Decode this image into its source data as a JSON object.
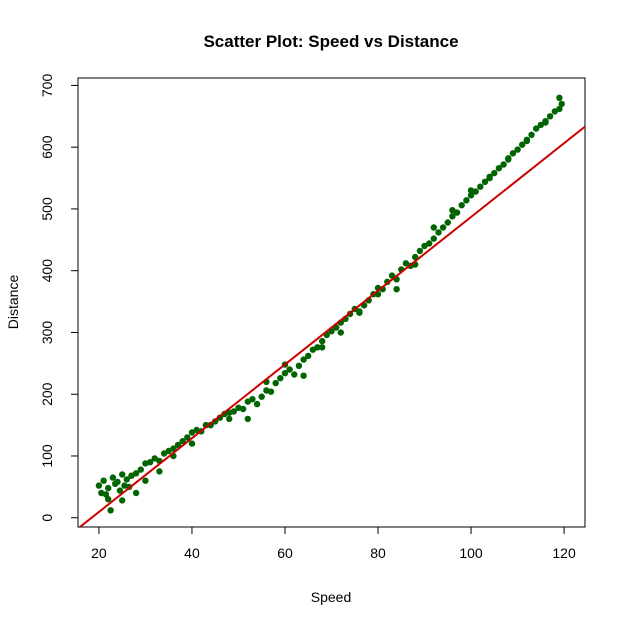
{
  "chart_data": {
    "type": "scatter",
    "title": "Scatter Plot: Speed vs Distance",
    "xlabel": "Speed",
    "ylabel": "Distance",
    "xlim": [
      15.5,
      124.5
    ],
    "ylim": [
      -15,
      712
    ],
    "xticks": [
      "20",
      "40",
      "60",
      "80",
      "100",
      "120"
    ],
    "yticks": [
      "0",
      "100",
      "200",
      "300",
      "400",
      "500",
      "600",
      "700"
    ],
    "grid": false,
    "legend": "none",
    "series": [
      {
        "kind": "points",
        "color": "#006400",
        "x": [
          20,
          20.5,
          21,
          21.5,
          22,
          22.5,
          23,
          23.5,
          24,
          24.5,
          25,
          25.5,
          26,
          26.5,
          27,
          28,
          29,
          30,
          31,
          32,
          33,
          34,
          35,
          36,
          37,
          38,
          39,
          40,
          41,
          42,
          43,
          44,
          45,
          46,
          47,
          48,
          49,
          50,
          51,
          52,
          53,
          54,
          55,
          56,
          57,
          58,
          59,
          60,
          61,
          62,
          63,
          64,
          65,
          66,
          67,
          68,
          69,
          70,
          71,
          72,
          73,
          74,
          75,
          76,
          77,
          78,
          79,
          80,
          81,
          82,
          83,
          84,
          85,
          86,
          87,
          88,
          89,
          90,
          91,
          92,
          93,
          94,
          95,
          96,
          97,
          98,
          99,
          100,
          101,
          102,
          103,
          104,
          105,
          106,
          107,
          108,
          109,
          110,
          111,
          112,
          113,
          114,
          115,
          116,
          117,
          118,
          119,
          119.5,
          22,
          25,
          28,
          30,
          33,
          36,
          40,
          44,
          48,
          52,
          56,
          60,
          64,
          68,
          72,
          76,
          80,
          84,
          88,
          92,
          96,
          100,
          104,
          108,
          112,
          116,
          119
        ],
        "y": [
          52,
          40,
          60,
          38,
          48,
          12,
          65,
          55,
          58,
          44,
          70,
          52,
          62,
          50,
          68,
          72,
          78,
          88,
          90,
          96,
          92,
          104,
          108,
          112,
          118,
          124,
          130,
          138,
          142,
          140,
          150,
          150,
          156,
          162,
          168,
          160,
          172,
          178,
          176,
          188,
          192,
          184,
          196,
          206,
          204,
          218,
          226,
          234,
          240,
          232,
          246,
          256,
          262,
          272,
          276,
          286,
          296,
          302,
          308,
          316,
          322,
          330,
          338,
          334,
          344,
          352,
          362,
          372,
          370,
          382,
          392,
          386,
          402,
          412,
          408,
          422,
          432,
          440,
          444,
          452,
          462,
          470,
          478,
          488,
          494,
          506,
          514,
          522,
          528,
          536,
          544,
          552,
          558,
          566,
          572,
          582,
          590,
          596,
          604,
          612,
          620,
          630,
          636,
          642,
          650,
          658,
          662,
          670,
          30,
          28,
          40,
          60,
          75,
          100,
          120,
          150,
          170,
          160,
          220,
          248,
          230,
          276,
          300,
          332,
          362,
          370,
          410,
          470,
          498,
          530,
          550,
          580,
          610,
          640,
          680
        ]
      },
      {
        "kind": "line",
        "color": "#cc0000",
        "slope": 5.97,
        "intercept": -110
      }
    ]
  }
}
